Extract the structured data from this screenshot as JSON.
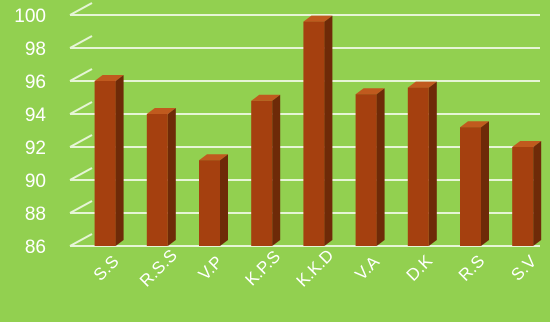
{
  "chart_data": {
    "type": "bar",
    "title": "",
    "xlabel": "",
    "ylabel": "",
    "categories": [
      "S.S",
      "R.S.S",
      "V.P",
      "K.P.S",
      "K.K.D",
      "V.A",
      "D.K",
      "R.S",
      "S.V"
    ],
    "series": [
      {
        "values": [
          96.0,
          94.0,
          91.2,
          94.8,
          99.6,
          95.2,
          95.6,
          93.2,
          92.0
        ]
      }
    ],
    "ylim": [
      86,
      100
    ],
    "yticks": [
      "86",
      "88",
      "90",
      "92",
      "94",
      "96",
      "98",
      "100"
    ],
    "grid": true,
    "legend": "none",
    "style": "3d-column",
    "colors": {
      "background": "#92d050",
      "bar_front": "#a5400f",
      "bar_side": "#6e2a08",
      "bar_top": "#c05a1e",
      "gridline": "#e6f5d6",
      "text": "#ffffff"
    }
  }
}
